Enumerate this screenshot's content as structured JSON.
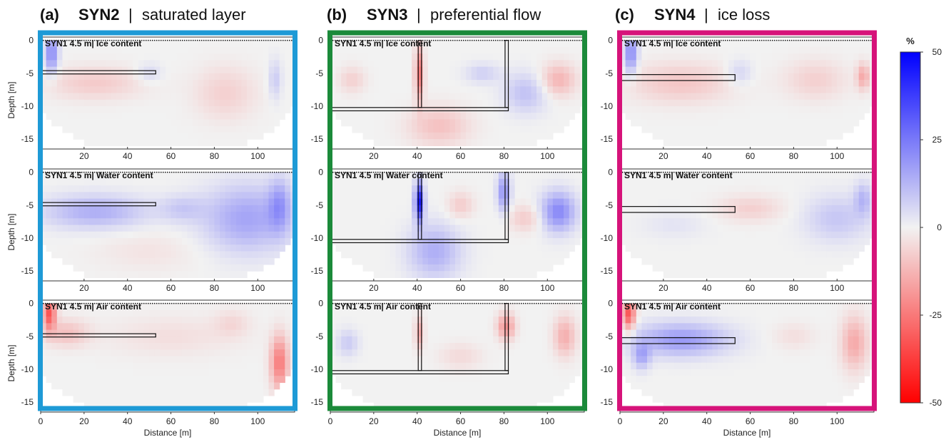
{
  "panels": [
    {
      "letter": "(a)",
      "name": "SYN2",
      "separator": "|",
      "desc": "saturated layer",
      "frame_color": "#1e9ad6"
    },
    {
      "letter": "(b)",
      "name": "SYN3",
      "separator": "|",
      "desc": "preferential flow",
      "frame_color": "#1b8a3a"
    },
    {
      "letter": "(c)",
      "name": "SYN4",
      "separator": "|",
      "desc": "ice loss",
      "frame_color": "#d6137a"
    }
  ],
  "subplot_titles": [
    "SYN1 4.5 m| Ice content",
    "SYN1 4.5 m| Water content",
    "SYN1 4.5 m| Air content"
  ],
  "chart_data": {
    "type": "heatmap",
    "xlabel": "Distance [m]",
    "ylabel": "Depth [m]",
    "xlim": [
      0,
      117
    ],
    "ylim": [
      -16.5,
      0.5
    ],
    "xticks": [
      "0",
      "20",
      "40",
      "60",
      "80",
      "100"
    ],
    "xticks_inner": [
      "20",
      "40",
      "60",
      "80",
      "100"
    ],
    "yticks": [
      "0",
      "-5",
      "-10",
      "-15"
    ],
    "colorbar": {
      "unit": "%",
      "ticks": [
        "50",
        "25",
        "0",
        "-25",
        "-50"
      ],
      "range": [
        -50,
        50
      ],
      "colors": {
        "max": "#0000ff",
        "mid": "#f2f2f2",
        "min": "#ff0000"
      }
    },
    "anomaly_outlines": {
      "SYN2": [
        {
          "x0": 0,
          "x1": 53,
          "y0": -4.6,
          "y1": -5.1
        }
      ],
      "SYN3": [
        {
          "x0": 40.5,
          "x1": 42,
          "y0": 0,
          "y1": -10.2
        },
        {
          "x0": 80.5,
          "x1": 82,
          "y0": 0,
          "y1": -10.2
        },
        {
          "x0": 0,
          "x1": 82,
          "y0": -10.2,
          "y1": -10.7
        }
      ],
      "SYN4": [
        {
          "x0": 0,
          "x1": 53,
          "y0": -5.2,
          "y1": -6.1
        }
      ]
    },
    "blobs": {
      "SYN2": [
        [
          {
            "x": 5,
            "y": -2,
            "rx": 3,
            "ry": 3,
            "v": 22
          },
          {
            "x": 25,
            "y": -6.5,
            "rx": 22,
            "ry": 2.5,
            "v": -8
          },
          {
            "x": 85,
            "y": -8,
            "rx": 14,
            "ry": 4,
            "v": -7
          },
          {
            "x": 50,
            "y": -5,
            "rx": 6,
            "ry": 1.5,
            "v": 6
          },
          {
            "x": 108,
            "y": -6,
            "rx": 3,
            "ry": 3,
            "v": 8
          }
        ],
        [
          {
            "x": 25,
            "y": -6,
            "rx": 24,
            "ry": 2.5,
            "v": 14
          },
          {
            "x": 95,
            "y": -7,
            "rx": 20,
            "ry": 5,
            "v": 16
          },
          {
            "x": 110,
            "y": -5,
            "rx": 5,
            "ry": 4,
            "v": 14
          },
          {
            "x": 65,
            "y": -5.5,
            "rx": 10,
            "ry": 2,
            "v": 7
          },
          {
            "x": 50,
            "y": -12,
            "rx": 25,
            "ry": 3,
            "v": -3
          }
        ],
        [
          {
            "x": 4,
            "y": -1.5,
            "rx": 3,
            "ry": 2.5,
            "v": -32
          },
          {
            "x": 12,
            "y": -4.5,
            "rx": 10,
            "ry": 2,
            "v": -10
          },
          {
            "x": 110,
            "y": -9,
            "rx": 4,
            "ry": 4,
            "v": -25
          },
          {
            "x": 60,
            "y": -5,
            "rx": 30,
            "ry": 3,
            "v": -4
          },
          {
            "x": 88,
            "y": -3,
            "rx": 8,
            "ry": 2,
            "v": -5
          }
        ]
      ],
      "SYN3": [
        [
          {
            "x": 41,
            "y": -5,
            "rx": 2,
            "ry": 4,
            "v": -25
          },
          {
            "x": 50,
            "y": -13,
            "rx": 14,
            "ry": 3,
            "v": -10
          },
          {
            "x": 90,
            "y": -8,
            "rx": 10,
            "ry": 3,
            "v": 10
          },
          {
            "x": 105,
            "y": -6,
            "rx": 8,
            "ry": 2.5,
            "v": -13
          },
          {
            "x": 10,
            "y": -6,
            "rx": 6,
            "ry": 2,
            "v": -7
          },
          {
            "x": 70,
            "y": -5,
            "rx": 8,
            "ry": 1.5,
            "v": 7
          }
        ],
        [
          {
            "x": 41,
            "y": -4.5,
            "rx": 2,
            "ry": 3,
            "v": 45
          },
          {
            "x": 48,
            "y": -12,
            "rx": 12,
            "ry": 4,
            "v": 14
          },
          {
            "x": 105,
            "y": -6,
            "rx": 8,
            "ry": 3,
            "v": 22
          },
          {
            "x": 80,
            "y": -3,
            "rx": 3,
            "ry": 3,
            "v": 20
          },
          {
            "x": 60,
            "y": -5,
            "rx": 6,
            "ry": 2,
            "v": -8
          },
          {
            "x": 90,
            "y": -7,
            "rx": 8,
            "ry": 2,
            "v": -8
          }
        ],
        [
          {
            "x": 41,
            "y": -4.5,
            "rx": 2,
            "ry": 2.5,
            "v": -15
          },
          {
            "x": 81,
            "y": -3.5,
            "rx": 4,
            "ry": 2,
            "v": -20
          },
          {
            "x": 108,
            "y": -5,
            "rx": 5,
            "ry": 3,
            "v": -14
          },
          {
            "x": 8,
            "y": -6,
            "rx": 5,
            "ry": 2,
            "v": 8
          },
          {
            "x": 60,
            "y": -8,
            "rx": 10,
            "ry": 2,
            "v": -5
          }
        ]
      ],
      "SYN4": [
        [
          {
            "x": 5,
            "y": -2,
            "rx": 3,
            "ry": 3,
            "v": 22
          },
          {
            "x": 28,
            "y": -6.5,
            "rx": 24,
            "ry": 3,
            "v": -9
          },
          {
            "x": 90,
            "y": -6,
            "rx": 14,
            "ry": 3,
            "v": -7
          },
          {
            "x": 112,
            "y": -5.5,
            "rx": 3,
            "ry": 2,
            "v": -15
          },
          {
            "x": 55,
            "y": -5,
            "rx": 6,
            "ry": 2,
            "v": 7
          }
        ],
        [
          {
            "x": 60,
            "y": -5.5,
            "rx": 15,
            "ry": 2,
            "v": -7
          },
          {
            "x": 100,
            "y": -7,
            "rx": 15,
            "ry": 3.5,
            "v": 9
          },
          {
            "x": 112,
            "y": -4,
            "rx": 4,
            "ry": 2.5,
            "v": 11
          },
          {
            "x": 25,
            "y": -8,
            "rx": 15,
            "ry": 2,
            "v": 3
          }
        ],
        [
          {
            "x": 4,
            "y": -1.5,
            "rx": 3,
            "ry": 2.5,
            "v": -32
          },
          {
            "x": 28,
            "y": -5.5,
            "rx": 22,
            "ry": 2.5,
            "v": 18
          },
          {
            "x": 10,
            "y": -8,
            "rx": 4,
            "ry": 2,
            "v": 14
          },
          {
            "x": 108,
            "y": -6,
            "rx": 6,
            "ry": 4,
            "v": -15
          },
          {
            "x": 80,
            "y": -5,
            "rx": 10,
            "ry": 2,
            "v": -4
          }
        ]
      ]
    }
  }
}
